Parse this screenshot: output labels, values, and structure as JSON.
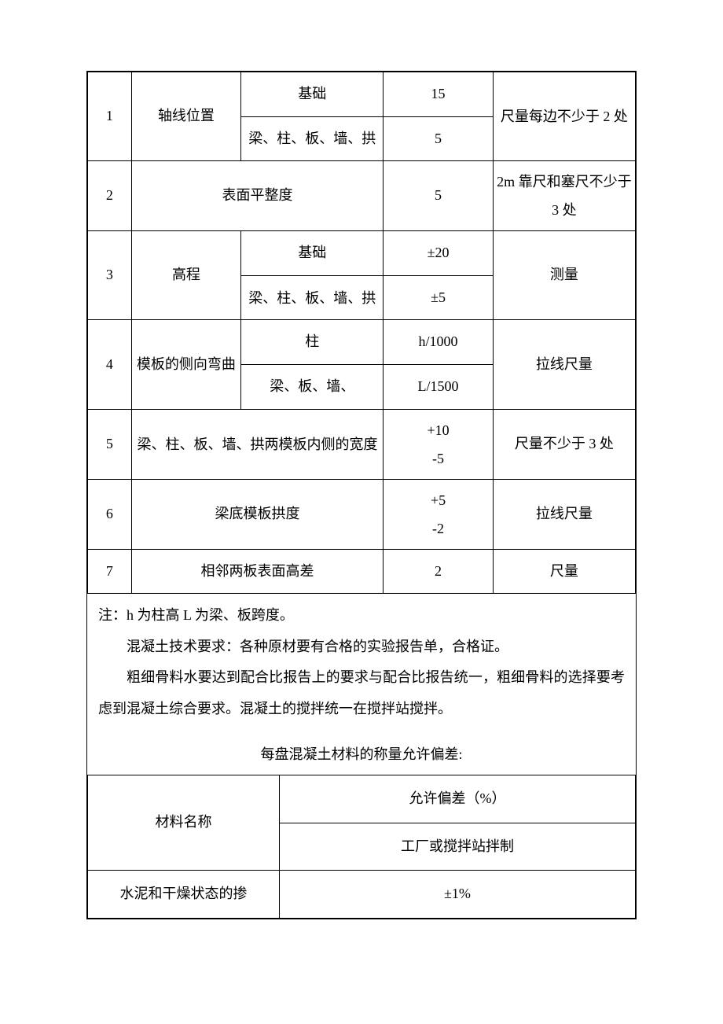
{
  "table1": {
    "rows": [
      {
        "num": "1",
        "name": "轴线位置",
        "sub1": "基础",
        "val1": "15",
        "sub2": "梁、柱、板、墙、拱",
        "val2": "5",
        "method": "尺量每边不少于 2 处"
      },
      {
        "num": "2",
        "name": "表面平整度",
        "val": "5",
        "method": "2m 靠尺和塞尺不少于 3 处"
      },
      {
        "num": "3",
        "name": "高程",
        "sub1": "基础",
        "val1": "±20",
        "sub2": "梁、柱、板、墙、拱",
        "val2": "±5",
        "method": "测量"
      },
      {
        "num": "4",
        "name": "模板的侧向弯曲",
        "sub1": "柱",
        "val1": "h/1000",
        "sub2": "梁、板、墙、",
        "val2": "L/1500",
        "method": "拉线尺量"
      },
      {
        "num": "5",
        "name": "梁、柱、板、墙、拱两模板内侧的宽度",
        "val": "+10\n-5",
        "method": "尺量不少于 3 处"
      },
      {
        "num": "6",
        "name": "梁底模板拱度",
        "val": "+5\n-2",
        "method": "拉线尺量"
      },
      {
        "num": "7",
        "name": "相邻两板表面高差",
        "val": "2",
        "method": "尺量"
      }
    ]
  },
  "notes": {
    "line1": "注：h 为柱高 L 为梁、板跨度。",
    "line2": "混凝土技术要求：各种原材要有合格的实验报告单，合格证。",
    "line3": "粗细骨料水要达到配合比报告上的要求与配合比报告统一，粗细骨料的选择要考虑到混凝土综合要求。混凝土的搅拌统一在搅拌站搅拌。"
  },
  "subtitle": "每盘混凝土材料的称量允许偏差:",
  "table2": {
    "header_col1": "材料名称",
    "header_col2": "允许偏差（%）",
    "header_col2_sub": "工厂或搅拌站拌制",
    "row1_col1": "水泥和干燥状态的掺",
    "row1_col2": "±1%"
  }
}
